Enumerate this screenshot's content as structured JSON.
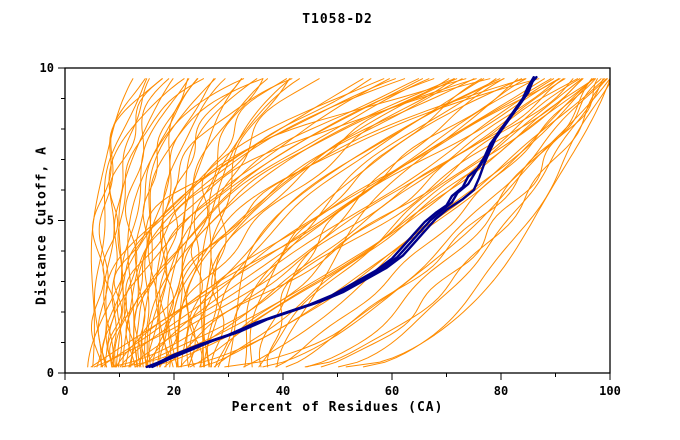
{
  "page": {
    "background": "#ffffff"
  },
  "chart_data": {
    "type": "line",
    "title": "T1058-D2",
    "xlabel": "Percent of Residues (CA)",
    "ylabel": "Distance Cutoff, A",
    "xlim": [
      0,
      100
    ],
    "ylim": [
      0,
      10
    ],
    "x_major_ticks": [
      0,
      20,
      40,
      60,
      80,
      100
    ],
    "x_minor_step": 10,
    "y_major_ticks": [
      0,
      5,
      10
    ],
    "y_minor_step": 1,
    "grid": false,
    "legend": "none",
    "colors": {
      "ensemble": "#ff8c00",
      "highlight": "#00008b",
      "frame": "#000000",
      "text": "#000000"
    },
    "highlight_series": [
      {
        "name": "highlight-1",
        "points": [
          [
            15,
            0.2
          ],
          [
            18,
            0.4
          ],
          [
            22,
            0.7
          ],
          [
            26,
            1.0
          ],
          [
            31,
            1.3
          ],
          [
            36,
            1.7
          ],
          [
            41,
            2.0
          ],
          [
            46,
            2.3
          ],
          [
            50,
            2.6
          ],
          [
            54,
            3.0
          ],
          [
            58,
            3.4
          ],
          [
            61,
            3.8
          ],
          [
            63,
            4.2
          ],
          [
            65,
            4.6
          ],
          [
            67,
            5.0
          ],
          [
            69,
            5.3
          ],
          [
            71,
            5.6
          ],
          [
            72,
            5.9
          ],
          [
            74,
            6.2
          ],
          [
            75,
            6.5
          ],
          [
            76,
            6.8
          ],
          [
            77,
            7.1
          ],
          [
            78,
            7.5
          ],
          [
            80,
            8.0
          ],
          [
            82,
            8.5
          ],
          [
            84,
            9.0
          ],
          [
            85,
            9.4
          ],
          [
            86,
            9.7
          ]
        ]
      },
      {
        "name": "highlight-2",
        "points": [
          [
            16,
            0.2
          ],
          [
            19,
            0.45
          ],
          [
            23,
            0.75
          ],
          [
            27,
            1.05
          ],
          [
            32,
            1.35
          ],
          [
            37,
            1.75
          ],
          [
            42,
            2.05
          ],
          [
            47,
            2.35
          ],
          [
            51,
            2.65
          ],
          [
            55,
            3.05
          ],
          [
            59,
            3.45
          ],
          [
            62,
            3.85
          ],
          [
            64,
            4.25
          ],
          [
            66,
            4.65
          ],
          [
            68,
            5.05
          ],
          [
            70,
            5.35
          ],
          [
            73,
            5.7
          ],
          [
            75,
            6.0
          ],
          [
            76,
            6.4
          ],
          [
            77,
            6.9
          ],
          [
            78,
            7.3
          ],
          [
            79,
            7.7
          ],
          [
            81,
            8.2
          ],
          [
            83,
            8.7
          ],
          [
            85,
            9.2
          ],
          [
            86,
            9.65
          ]
        ]
      },
      {
        "name": "highlight-3",
        "points": [
          [
            15.5,
            0.2
          ],
          [
            20,
            0.6
          ],
          [
            25,
            0.95
          ],
          [
            30,
            1.25
          ],
          [
            35,
            1.65
          ],
          [
            40,
            1.95
          ],
          [
            45,
            2.25
          ],
          [
            49,
            2.55
          ],
          [
            53,
            2.95
          ],
          [
            57,
            3.35
          ],
          [
            60,
            3.75
          ],
          [
            62,
            4.15
          ],
          [
            64,
            4.55
          ],
          [
            66,
            4.95
          ],
          [
            68,
            5.25
          ],
          [
            70,
            5.5
          ],
          [
            71,
            5.8
          ],
          [
            73,
            6.1
          ],
          [
            74,
            6.45
          ],
          [
            76,
            6.75
          ],
          [
            77,
            7.05
          ],
          [
            78,
            7.45
          ],
          [
            80,
            7.95
          ],
          [
            82,
            8.45
          ],
          [
            84,
            8.95
          ],
          [
            85.5,
            9.5
          ],
          [
            86.5,
            9.7
          ]
        ]
      }
    ],
    "ensemble_curves": {
      "count": 90,
      "y_start": 0.2,
      "y_end": 9.7,
      "param_format": [
        "x_at_bottom",
        "x_at_top",
        "shape_exponent"
      ],
      "params": [
        [
          5,
          13,
          4.0
        ],
        [
          6,
          15,
          3.5
        ],
        [
          7,
          14,
          5.0
        ],
        [
          8,
          18,
          4.2
        ],
        [
          9,
          16,
          3.8
        ],
        [
          10,
          20,
          4.5
        ],
        [
          11,
          22,
          3.2
        ],
        [
          12,
          19,
          5.5
        ],
        [
          13,
          25,
          4.0
        ],
        [
          14,
          23,
          3.6
        ],
        [
          15,
          27,
          4.8
        ],
        [
          16,
          24,
          3.3
        ],
        [
          17,
          30,
          4.1
        ],
        [
          18,
          28,
          5.2
        ],
        [
          19,
          32,
          3.9
        ],
        [
          20,
          35,
          4.4
        ],
        [
          21,
          33,
          3.5
        ],
        [
          22,
          38,
          4.7
        ],
        [
          23,
          36,
          3.1
        ],
        [
          24,
          40,
          4.3
        ],
        [
          25,
          42,
          3.7
        ],
        [
          26,
          44,
          5.0
        ],
        [
          27,
          41,
          3.4
        ],
        [
          28,
          46,
          4.6
        ],
        [
          10,
          26,
          6.0
        ],
        [
          12,
          34,
          5.8
        ],
        [
          8,
          22,
          6.5
        ],
        [
          6,
          17,
          5.4
        ],
        [
          15,
          37,
          6.2
        ],
        [
          18,
          43,
          5.6
        ],
        [
          5,
          55,
          2.0
        ],
        [
          6,
          58,
          2.4
        ],
        [
          7,
          60,
          1.8
        ],
        [
          8,
          62,
          2.6
        ],
        [
          9,
          57,
          2.2
        ],
        [
          10,
          65,
          1.9
        ],
        [
          11,
          63,
          2.8
        ],
        [
          12,
          68,
          2.1
        ],
        [
          13,
          66,
          2.5
        ],
        [
          14,
          70,
          1.7
        ],
        [
          15,
          72,
          2.3
        ],
        [
          16,
          69,
          2.7
        ],
        [
          17,
          74,
          2.0
        ],
        [
          18,
          71,
          1.6
        ],
        [
          19,
          76,
          2.9
        ],
        [
          20,
          73,
          2.2
        ],
        [
          22,
          78,
          1.8
        ],
        [
          24,
          75,
          2.4
        ],
        [
          26,
          80,
          2.0
        ],
        [
          28,
          77,
          1.5
        ],
        [
          30,
          82,
          2.6
        ],
        [
          32,
          79,
          1.9
        ],
        [
          34,
          84,
          2.3
        ],
        [
          36,
          81,
          1.7
        ],
        [
          38,
          86,
          2.1
        ],
        [
          40,
          83,
          1.6
        ],
        [
          25,
          85,
          3.0
        ],
        [
          20,
          88,
          2.8
        ],
        [
          12,
          80,
          3.2
        ],
        [
          9,
          75,
          3.4
        ],
        [
          5,
          88,
          1.0
        ],
        [
          6,
          90,
          0.9
        ],
        [
          7,
          92,
          1.1
        ],
        [
          8,
          94,
          0.8
        ],
        [
          9,
          91,
          1.2
        ],
        [
          10,
          95,
          0.7
        ],
        [
          12,
          93,
          1.0
        ],
        [
          14,
          96,
          0.9
        ],
        [
          16,
          97,
          0.8
        ],
        [
          18,
          94,
          1.1
        ],
        [
          20,
          98,
          0.7
        ],
        [
          22,
          96,
          0.9
        ],
        [
          25,
          99,
          0.8
        ],
        [
          28,
          97,
          1.0
        ],
        [
          30,
          99,
          0.6
        ],
        [
          33,
          98,
          0.9
        ],
        [
          36,
          100,
          0.7
        ],
        [
          40,
          99,
          0.8
        ],
        [
          44,
          100,
          0.6
        ],
        [
          48,
          99,
          0.7
        ],
        [
          52,
          100,
          0.5
        ],
        [
          55,
          100,
          0.6
        ],
        [
          35,
          95,
          1.2
        ],
        [
          27,
          93,
          1.15
        ],
        [
          21,
          91,
          1.05
        ],
        [
          15,
          89,
          1.2
        ],
        [
          11,
          87,
          1.15
        ],
        [
          45,
          98,
          0.75
        ],
        [
          50,
          99,
          0.65
        ],
        [
          38,
          97,
          0.85
        ]
      ]
    }
  }
}
